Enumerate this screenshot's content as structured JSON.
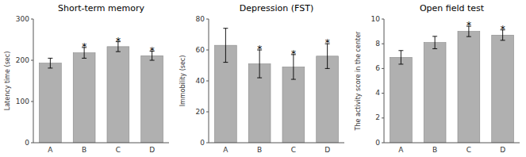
{
  "chart_data": [
    {
      "type": "bar",
      "title": "Short-term memory",
      "ylabel": "Latency time (sec)",
      "categories": [
        "A",
        "B",
        "C",
        "D"
      ],
      "values": [
        193,
        218,
        233,
        211
      ],
      "errors": [
        12,
        13,
        12,
        11
      ],
      "annotations": [
        {
          "category": "B",
          "text": "*"
        },
        {
          "category": "C",
          "text": "*"
        },
        {
          "category": "D",
          "text": "*"
        }
      ],
      "color": "#b0b0b0",
      "ylim": [
        0,
        300
      ],
      "yticks": [
        0,
        100,
        200,
        300
      ],
      "grid": false
    },
    {
      "type": "bar",
      "title": "Depression (FST)",
      "ylabel": "Immobility (sec)",
      "categories": [
        "A",
        "B",
        "C",
        "D"
      ],
      "values": [
        63,
        51,
        49,
        56
      ],
      "errors": [
        11,
        9,
        8,
        8
      ],
      "annotations": [
        {
          "category": "B",
          "text": "*"
        },
        {
          "category": "C",
          "text": "*"
        },
        {
          "category": "D",
          "text": "*"
        }
      ],
      "color": "#b0b0b0",
      "ylim": [
        0,
        80
      ],
      "yticks": [
        0,
        20,
        40,
        60,
        80
      ],
      "grid": false
    },
    {
      "type": "bar",
      "title": "Open field test",
      "ylabel": "The activity score in the center",
      "categories": [
        "A",
        "B",
        "C",
        "D"
      ],
      "values": [
        6.9,
        8.1,
        9.0,
        8.7
      ],
      "errors": [
        0.55,
        0.5,
        0.42,
        0.42
      ],
      "annotations": [
        {
          "category": "C",
          "text": "*"
        },
        {
          "category": "D",
          "text": "*"
        }
      ],
      "color": "#b0b0b0",
      "ylim": [
        0,
        10
      ],
      "yticks": [
        0,
        2,
        4,
        6,
        8,
        10
      ],
      "grid": false
    }
  ]
}
